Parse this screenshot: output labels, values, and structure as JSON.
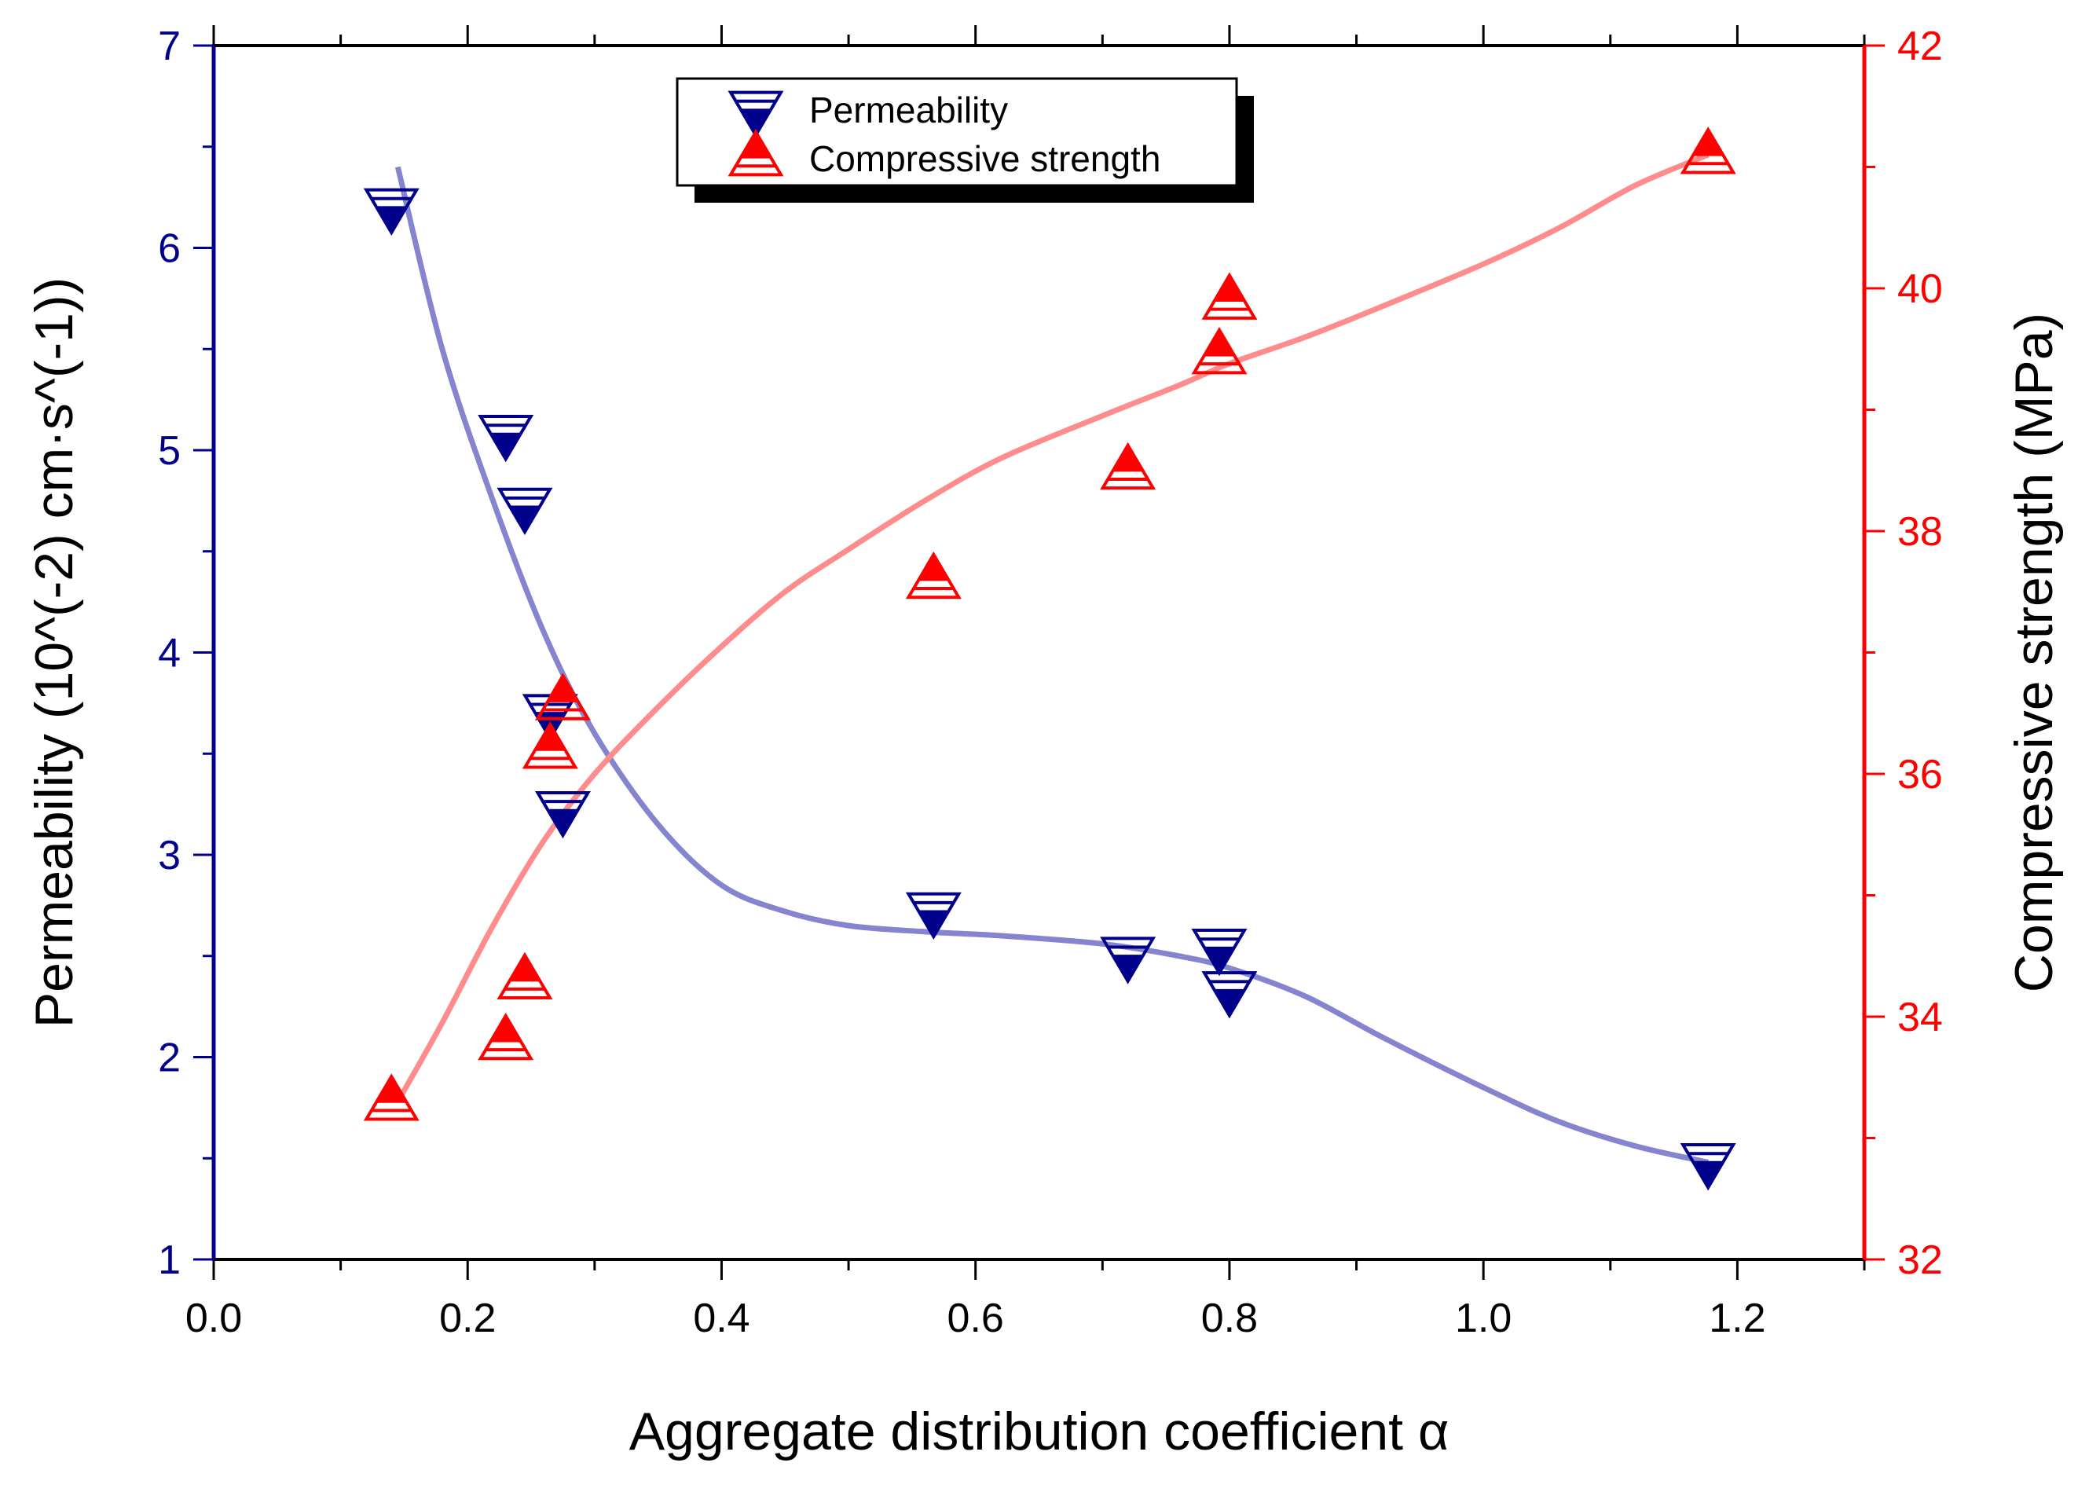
{
  "chart_data": {
    "type": "scatter",
    "title": "",
    "xlabel": "Aggregate distribution coefficient α",
    "ylabel_left": "Permeability (10^(-2) cm·s^(-1))",
    "ylabel_right": "Compressive strength (MPa)",
    "xlim": [
      0.0,
      1.3
    ],
    "ylim_left": [
      1,
      7
    ],
    "ylim_right": [
      32,
      42
    ],
    "x_ticks": [
      "0.0",
      "0.2",
      "0.4",
      "0.6",
      "0.8",
      "1.0",
      "1.2"
    ],
    "y_left_ticks": [
      "1",
      "2",
      "3",
      "4",
      "5",
      "6",
      "7"
    ],
    "y_right_ticks": [
      "32",
      "34",
      "36",
      "38",
      "40",
      "42"
    ],
    "legend_position": "top-center",
    "series": [
      {
        "name": "Permeability",
        "axis": "left",
        "marker": "down-triangle-half-filled",
        "color": "#00008B",
        "fit_color": "#8585CF",
        "x": [
          0.14,
          0.23,
          0.245,
          0.265,
          0.275,
          0.567,
          0.72,
          0.792,
          0.8,
          1.177
        ],
        "values": [
          6.2,
          5.08,
          4.72,
          3.7,
          3.22,
          2.72,
          2.5,
          2.54,
          2.33,
          1.48
        ],
        "fit_curve": {
          "x": [
            0.145,
            0.18,
            0.22,
            0.26,
            0.3,
            0.35,
            0.4,
            0.45,
            0.5,
            0.56,
            0.62,
            0.7,
            0.76,
            0.8,
            0.86,
            0.92,
            1.0,
            1.06,
            1.12,
            1.177
          ],
          "y": [
            6.4,
            5.5,
            4.75,
            4.1,
            3.6,
            3.15,
            2.85,
            2.72,
            2.65,
            2.62,
            2.6,
            2.56,
            2.5,
            2.44,
            2.3,
            2.1,
            1.85,
            1.68,
            1.56,
            1.48
          ]
        }
      },
      {
        "name": "Compressive strength",
        "axis": "right",
        "marker": "up-triangle-half-filled",
        "color": "#FF0000",
        "fit_color": "#FF8C8C",
        "x": [
          0.14,
          0.23,
          0.245,
          0.265,
          0.275,
          0.567,
          0.72,
          0.792,
          0.8,
          1.177
        ],
        "values": [
          33.3,
          33.8,
          34.3,
          36.2,
          36.6,
          37.6,
          38.5,
          39.45,
          39.9,
          41.1
        ],
        "fit_curve": {
          "x": [
            0.145,
            0.18,
            0.22,
            0.26,
            0.3,
            0.35,
            0.4,
            0.45,
            0.5,
            0.56,
            0.62,
            0.7,
            0.76,
            0.8,
            0.86,
            0.92,
            1.0,
            1.06,
            1.12,
            1.177
          ],
          "y": [
            33.3,
            33.95,
            34.75,
            35.45,
            36.0,
            36.55,
            37.05,
            37.5,
            37.85,
            38.25,
            38.6,
            38.95,
            39.2,
            39.38,
            39.6,
            39.85,
            40.2,
            40.5,
            40.85,
            41.1
          ]
        }
      }
    ]
  }
}
